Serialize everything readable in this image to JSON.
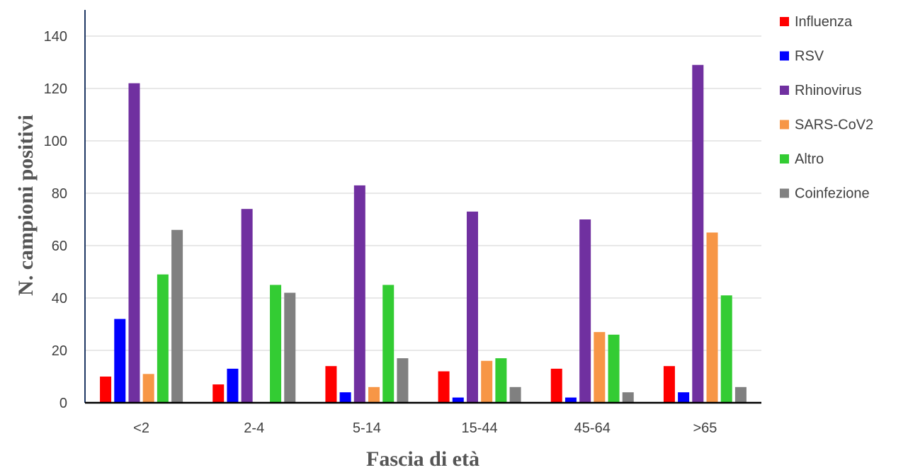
{
  "chart_data": {
    "type": "bar",
    "xlabel": "Fascia di età",
    "ylabel": "N. campioni positivi",
    "categories": [
      "<2",
      "2-4",
      "5-14",
      "15-44",
      "45-64",
      ">65"
    ],
    "ylim": [
      0,
      140
    ],
    "yticks": [
      0,
      20,
      40,
      60,
      80,
      100,
      120,
      140
    ],
    "grid": true,
    "legend_position": "right",
    "series": [
      {
        "name": "Influenza",
        "color": "#ff0000",
        "values": [
          10,
          7,
          14,
          12,
          13,
          14
        ]
      },
      {
        "name": "RSV",
        "color": "#0000ff",
        "values": [
          32,
          13,
          4,
          2,
          2,
          4
        ]
      },
      {
        "name": "Rhinovirus",
        "color": "#7030a0",
        "values": [
          122,
          74,
          83,
          73,
          70,
          129
        ]
      },
      {
        "name": "SARS-CoV2",
        "color": "#f79646",
        "values": [
          11,
          0,
          6,
          16,
          27,
          65
        ]
      },
      {
        "name": "Altro",
        "color": "#33cc33",
        "values": [
          49,
          45,
          45,
          17,
          26,
          41
        ]
      },
      {
        "name": "Coinfezione",
        "color": "#808080",
        "values": [
          66,
          42,
          17,
          6,
          4,
          6
        ]
      }
    ]
  }
}
